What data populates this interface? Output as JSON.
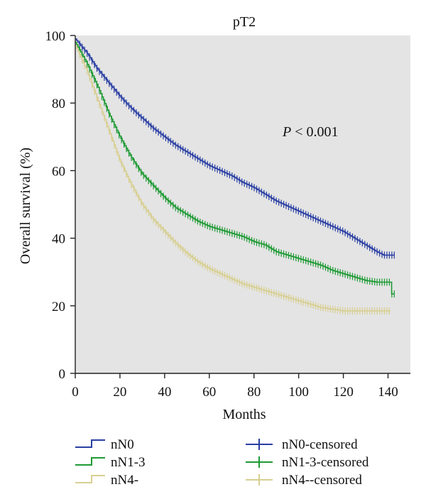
{
  "chart_data": {
    "type": "line",
    "title": "pT2",
    "xlabel": "Months",
    "ylabel": "Overall survival (%)",
    "xlim": [
      0,
      150
    ],
    "ylim": [
      0,
      100
    ],
    "x_ticks": [
      0,
      20,
      40,
      60,
      80,
      100,
      120,
      140
    ],
    "y_ticks": [
      0,
      20,
      40,
      60,
      80,
      100
    ],
    "grid": false,
    "legend_position": "bottom",
    "annotation": {
      "italic": "P",
      "text": " < 0.001"
    },
    "series": [
      {
        "name": "nN0",
        "censored_name": "nN0-censored",
        "color": "#2a3fa3",
        "points": [
          [
            0,
            99
          ],
          [
            5,
            95
          ],
          [
            10,
            90
          ],
          [
            15,
            86
          ],
          [
            20,
            82
          ],
          [
            25,
            78.5
          ],
          [
            30,
            75.5
          ],
          [
            35,
            72.5
          ],
          [
            40,
            70
          ],
          [
            45,
            67.5
          ],
          [
            50,
            65.5
          ],
          [
            55,
            63.5
          ],
          [
            60,
            61.5
          ],
          [
            65,
            60
          ],
          [
            70,
            58.5
          ],
          [
            75,
            56.5
          ],
          [
            80,
            55
          ],
          [
            85,
            53
          ],
          [
            90,
            51
          ],
          [
            95,
            49.5
          ],
          [
            100,
            48
          ],
          [
            105,
            46.5
          ],
          [
            110,
            45
          ],
          [
            115,
            43.5
          ],
          [
            120,
            42
          ],
          [
            125,
            40
          ],
          [
            130,
            38
          ],
          [
            135,
            36
          ],
          [
            138,
            35
          ],
          [
            143,
            35
          ]
        ],
        "censor_range": [
          2,
          143
        ]
      },
      {
        "name": "nN1-3",
        "censored_name": "nN1-3-censored",
        "color": "#1e9a34",
        "points": [
          [
            0,
            98
          ],
          [
            5,
            92
          ],
          [
            10,
            85
          ],
          [
            15,
            77
          ],
          [
            20,
            70
          ],
          [
            25,
            64
          ],
          [
            30,
            59
          ],
          [
            35,
            55.5
          ],
          [
            40,
            52
          ],
          [
            45,
            49
          ],
          [
            50,
            47
          ],
          [
            55,
            45
          ],
          [
            60,
            43.5
          ],
          [
            65,
            42.5
          ],
          [
            70,
            41.5
          ],
          [
            75,
            40.5
          ],
          [
            80,
            39
          ],
          [
            85,
            38
          ],
          [
            90,
            36
          ],
          [
            95,
            35
          ],
          [
            100,
            34
          ],
          [
            105,
            33
          ],
          [
            110,
            32
          ],
          [
            115,
            30.5
          ],
          [
            120,
            29.5
          ],
          [
            125,
            28.5
          ],
          [
            130,
            27.5
          ],
          [
            135,
            27
          ],
          [
            140,
            27
          ],
          [
            141,
            23.5
          ],
          [
            143,
            23.5
          ]
        ],
        "censor_range": [
          2,
          143
        ]
      },
      {
        "name": "nN4-",
        "censored_name": "nN4--censored",
        "color": "#d8cf92",
        "points": [
          [
            0,
            97
          ],
          [
            5,
            90
          ],
          [
            10,
            81
          ],
          [
            15,
            72
          ],
          [
            20,
            63
          ],
          [
            25,
            56
          ],
          [
            30,
            50
          ],
          [
            35,
            45.5
          ],
          [
            40,
            42
          ],
          [
            45,
            38.5
          ],
          [
            50,
            35.5
          ],
          [
            55,
            33
          ],
          [
            60,
            31
          ],
          [
            65,
            29.5
          ],
          [
            70,
            28
          ],
          [
            75,
            26.5
          ],
          [
            80,
            25.5
          ],
          [
            85,
            24.5
          ],
          [
            90,
            23.5
          ],
          [
            95,
            22.5
          ],
          [
            100,
            21.5
          ],
          [
            105,
            20.5
          ],
          [
            110,
            19.5
          ],
          [
            115,
            19
          ],
          [
            120,
            18.5
          ],
          [
            130,
            18.5
          ],
          [
            141,
            18.5
          ]
        ],
        "censor_range": [
          2,
          141
        ]
      }
    ]
  }
}
